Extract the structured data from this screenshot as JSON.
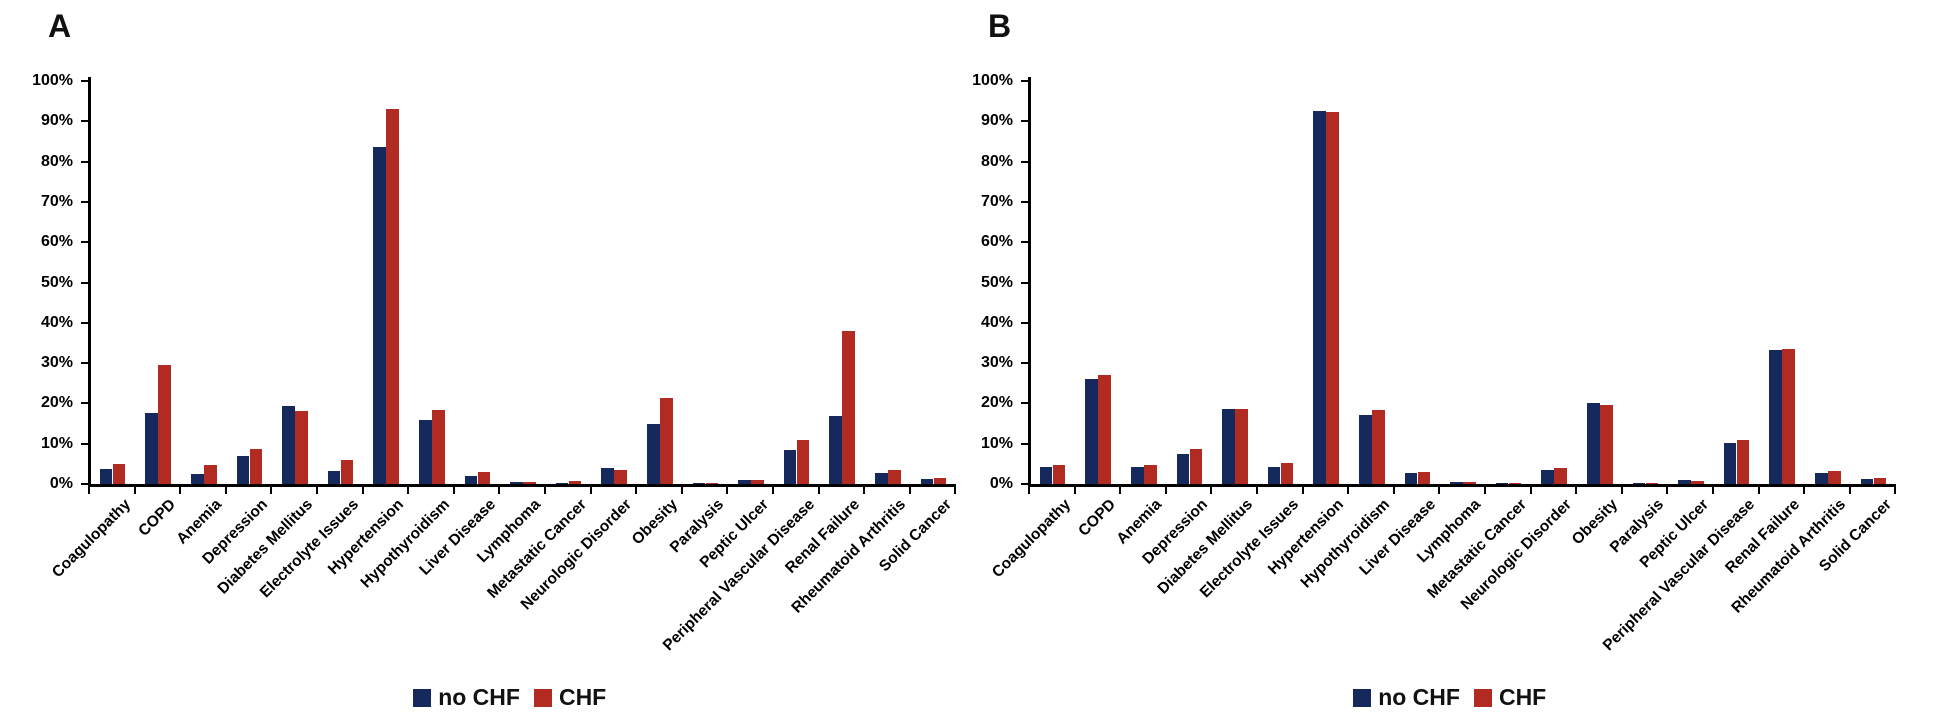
{
  "figure": {
    "panel_a_title": "A",
    "panel_b_title": "B"
  },
  "colors": {
    "no_chf": "#15295d",
    "chf": "#b22b22",
    "axis": "#000000"
  },
  "legend": {
    "no_chf_label": "no CHF",
    "chf_label": "CHF"
  },
  "y_axis": {
    "tick_labels": [
      "0%",
      "10%",
      "20%",
      "30%",
      "40%",
      "50%",
      "60%",
      "70%",
      "80%",
      "90%",
      "100%"
    ]
  },
  "chart_data": [
    {
      "type": "bar",
      "panel_label": "A",
      "title": "",
      "xlabel": "",
      "ylabel": "",
      "ylim": [
        0,
        100
      ],
      "grid": false,
      "legend_position": "bottom",
      "categories": [
        "Coagulopathy",
        "COPD",
        "Anemia",
        "Depression",
        "Diabetes Mellitus",
        "Electrolyte Issues",
        "Hypertension",
        "Hypothyroidism",
        "Liver Disease",
        "Lymphoma",
        "Metastatic Cancer",
        "Neurologic Disorder",
        "Obesity",
        "Paralysis",
        "Peptic Ulcer",
        "Peripheral Vascular Disease",
        "Renal Failure",
        "Rheumatoid Arthritis",
        "Solid Cancer"
      ],
      "series": [
        {
          "name": "no CHF",
          "values": [
            3.6,
            17.7,
            2.4,
            6.9,
            19.3,
            3.3,
            83.7,
            15.8,
            1.9,
            0.5,
            0.3,
            4.0,
            14.8,
            0.3,
            1.1,
            8.5,
            16.8,
            2.8,
            1.2
          ]
        },
        {
          "name": "CHF",
          "values": [
            4.9,
            29.6,
            4.7,
            8.8,
            18.0,
            5.9,
            93.0,
            18.3,
            2.9,
            0.6,
            0.7,
            3.5,
            21.4,
            0.3,
            1.0,
            11.0,
            38.0,
            3.4,
            1.6
          ]
        }
      ]
    },
    {
      "type": "bar",
      "panel_label": "B",
      "title": "",
      "xlabel": "",
      "ylabel": "",
      "ylim": [
        0,
        100
      ],
      "grid": false,
      "legend_position": "bottom",
      "categories": [
        "Coagulopathy",
        "COPD",
        "Anemia",
        "Depression",
        "Diabetes Mellitus",
        "Electrolyte Issues",
        "Hypertension",
        "Hypothyroidism",
        "Liver Disease",
        "Lymphoma",
        "Metastatic Cancer",
        "Neurologic Disorder",
        "Obesity",
        "Paralysis",
        "Peptic Ulcer",
        "Peripheral Vascular Disease",
        "Renal Failure",
        "Rheumatoid Arthritis",
        "Solid Cancer"
      ],
      "series": [
        {
          "name": "no CHF",
          "values": [
            4.2,
            26.1,
            4.1,
            7.4,
            18.7,
            4.3,
            92.5,
            17.0,
            2.7,
            0.4,
            0.2,
            3.4,
            20.0,
            0.2,
            0.9,
            10.1,
            33.3,
            2.7,
            1.2
          ]
        },
        {
          "name": "CHF",
          "values": [
            4.8,
            27.0,
            4.6,
            8.7,
            18.7,
            5.2,
            92.2,
            18.3,
            3.1,
            0.5,
            0.3,
            3.9,
            19.6,
            0.3,
            0.8,
            10.8,
            33.5,
            3.2,
            1.4
          ]
        }
      ]
    }
  ]
}
